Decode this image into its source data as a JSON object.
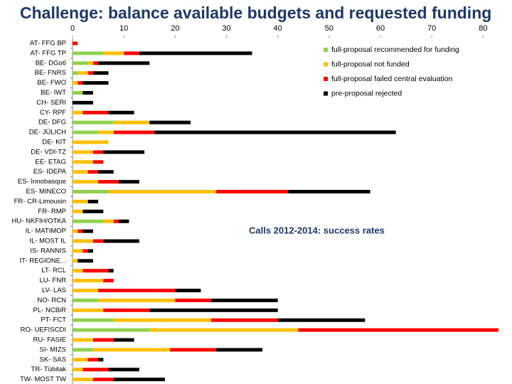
{
  "chart_data": {
    "type": "stacked_barh",
    "title": "Challenge: balance available budgets and requested funding",
    "annotation": "Calls 2012-2014: success rates",
    "categories": [
      "AT- FFG BP",
      "AT- FFG TP",
      "BE- DGo6",
      "BE- FNRS",
      "BE- FWO",
      "BE- IWT",
      "CH- SERI",
      "CY- RPF",
      "DE- DFG",
      "DE- JÜLICH",
      "DE- KIT",
      "DE- VDI-TZ",
      "EE- ETAG",
      "ES- IDEPA",
      "ES- Innobasque",
      "ES- MINECO",
      "FR- CR-Limousin",
      "FR- RMP",
      "HU- NKFIH/OTKA",
      "IL- MATIMOP",
      "IL- MOST IL",
      "IS- RANNIS",
      "IT- REGIONE...",
      "LT- RCL",
      "LU- FNR",
      "LV- LAS",
      "NO- RCN",
      "PL- NCBiR",
      "PT- FCT",
      "RO- UEFISCDI",
      "RU- FASIE",
      "SI- MIZS",
      "SK- SAS",
      "TR- Tübitak",
      "TW- MOST TW"
    ],
    "series": [
      {
        "name": "full-proposal recommended for funding",
        "color": "#92d050",
        "values": [
          0,
          6,
          3,
          1,
          0,
          2,
          0,
          0,
          8,
          5,
          0,
          0,
          0,
          0,
          0,
          7,
          0,
          0,
          6,
          0,
          0,
          0,
          0,
          0,
          0,
          0,
          5,
          0,
          8,
          15,
          0,
          4,
          0,
          0,
          0
        ]
      },
      {
        "name": "full-proposal not funded",
        "color": "#ffc000",
        "values": [
          0,
          4,
          1,
          2,
          1,
          0,
          0,
          2,
          7,
          3,
          7,
          4,
          4,
          3,
          5,
          21,
          3,
          2,
          2,
          1,
          4,
          2,
          1,
          2,
          6,
          5,
          15,
          6,
          19,
          29,
          4,
          15,
          3,
          2,
          4
        ]
      },
      {
        "name": "full-proposal failed central evaluation",
        "color": "#ff0000",
        "values": [
          1,
          3,
          1,
          1,
          1,
          0,
          0,
          5,
          0,
          8,
          0,
          2,
          2,
          2,
          4,
          14,
          0,
          0,
          1,
          1,
          2,
          1,
          0,
          5,
          2,
          15,
          7,
          9,
          13,
          39,
          4,
          9,
          2,
          5,
          4
        ]
      },
      {
        "name": "pre-proposal rejected",
        "color": "#000000",
        "values": [
          0,
          22,
          10,
          3,
          5,
          2,
          4,
          5,
          8,
          47,
          0,
          8,
          0,
          3,
          4,
          16,
          2,
          4,
          2,
          2,
          7,
          1,
          3,
          1,
          0,
          5,
          13,
          25,
          17,
          0,
          4,
          9,
          1,
          6,
          10
        ]
      }
    ],
    "xlim": [
      0,
      83
    ],
    "xticks": [
      0,
      10,
      20,
      30,
      40,
      50,
      60,
      70,
      80
    ],
    "legend": "upper right"
  }
}
